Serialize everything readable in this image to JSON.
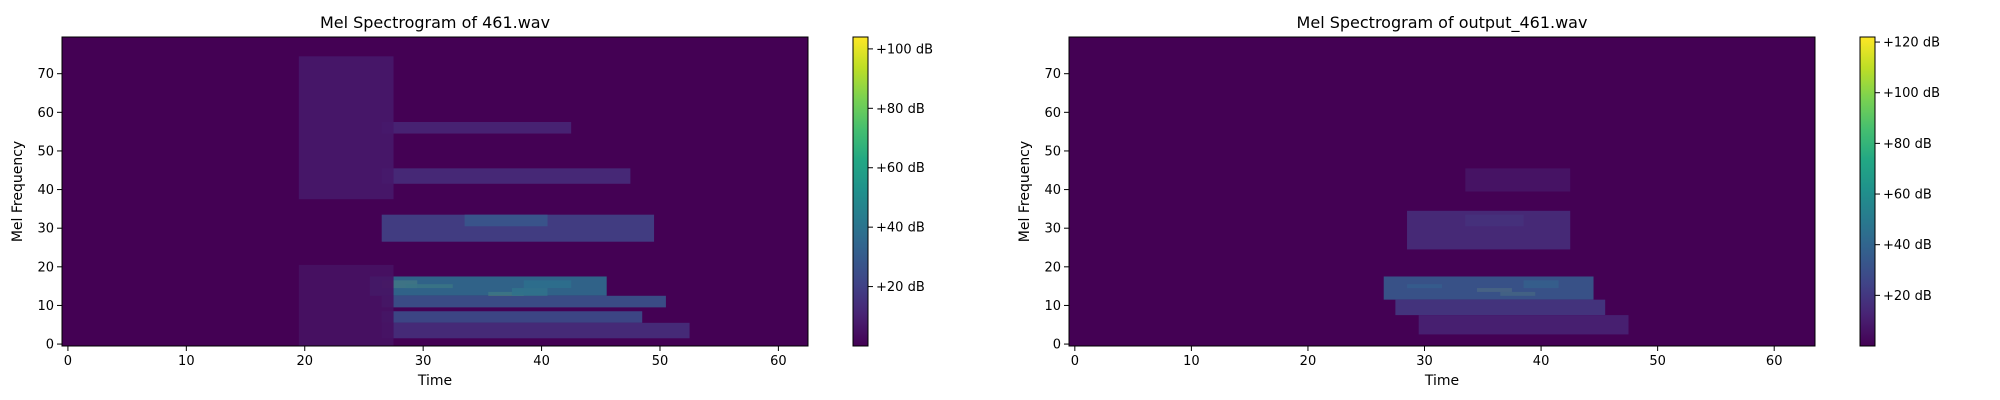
{
  "figure": {
    "background": "#ffffff"
  },
  "chart_data": [
    {
      "type": "heatmap",
      "title": "Mel Spectrogram of 461.wav",
      "xlabel": "Time",
      "ylabel": "Mel Frequency",
      "xlim": [
        -0.5,
        62.5
      ],
      "ylim": [
        -0.5,
        79.5
      ],
      "xticks": [
        0,
        10,
        20,
        30,
        40,
        50,
        60
      ],
      "yticks": [
        0,
        10,
        20,
        30,
        40,
        50,
        60,
        70
      ],
      "colormap": "viridis",
      "background_color": "#440154",
      "colorbar": {
        "vmin": 0,
        "vmax": 104,
        "ticks": [
          20,
          40,
          60,
          80,
          100
        ],
        "tick_labels": [
          "+20 dB",
          "+40 dB",
          "+60 dB",
          "+80 dB",
          "+100 dB"
        ]
      },
      "energy_regions": [
        {
          "t": [
            27,
            29
          ],
          "mel": [
            15,
            16
          ],
          "db": 104
        },
        {
          "t": [
            29,
            32
          ],
          "mel": [
            15,
            15
          ],
          "db": 92
        },
        {
          "t": [
            36,
            38
          ],
          "mel": [
            13,
            13
          ],
          "db": 98
        },
        {
          "t": [
            38,
            40
          ],
          "mel": [
            13,
            14
          ],
          "db": 72
        },
        {
          "t": [
            39,
            42
          ],
          "mel": [
            15,
            16
          ],
          "db": 58
        },
        {
          "t": [
            26,
            45
          ],
          "mel": [
            13,
            17
          ],
          "db": 36
        },
        {
          "t": [
            27,
            50
          ],
          "mel": [
            10,
            12
          ],
          "db": 26
        },
        {
          "t": [
            27,
            48
          ],
          "mel": [
            6,
            8
          ],
          "db": 24
        },
        {
          "t": [
            27,
            52
          ],
          "mel": [
            2,
            5
          ],
          "db": 14
        },
        {
          "t": [
            27,
            49
          ],
          "mel": [
            27,
            33
          ],
          "db": 20
        },
        {
          "t": [
            34,
            40
          ],
          "mel": [
            31,
            33
          ],
          "db": 28
        },
        {
          "t": [
            27,
            47
          ],
          "mel": [
            42,
            45
          ],
          "db": 13
        },
        {
          "t": [
            27,
            42
          ],
          "mel": [
            55,
            57
          ],
          "db": 11
        },
        {
          "t": [
            20,
            27
          ],
          "mel": [
            38,
            74
          ],
          "db": 7
        },
        {
          "t": [
            20,
            27
          ],
          "mel": [
            0,
            20
          ],
          "db": 5
        }
      ]
    },
    {
      "type": "heatmap",
      "title": "Mel Spectrogram of output_461.wav",
      "xlabel": "Time",
      "ylabel": "Mel Frequency",
      "xlim": [
        -0.5,
        63.5
      ],
      "ylim": [
        -0.5,
        79.5
      ],
      "xticks": [
        0,
        10,
        20,
        30,
        40,
        50,
        60
      ],
      "yticks": [
        0,
        10,
        20,
        30,
        40,
        50,
        60,
        70
      ],
      "colormap": "viridis",
      "background_color": "#440154",
      "colorbar": {
        "vmin": 0,
        "vmax": 122,
        "ticks": [
          20,
          40,
          60,
          80,
          100,
          120
        ],
        "tick_labels": [
          "+20 dB",
          "+40 dB",
          "+60 dB",
          "+80 dB",
          "+100 dB",
          "+120 dB"
        ]
      },
      "energy_regions": [
        {
          "t": [
            35,
            37
          ],
          "mel": [
            14,
            14
          ],
          "db": 122
        },
        {
          "t": [
            37,
            39
          ],
          "mel": [
            13,
            13
          ],
          "db": 112
        },
        {
          "t": [
            39,
            41
          ],
          "mel": [
            15,
            16
          ],
          "db": 72
        },
        {
          "t": [
            29,
            31
          ],
          "mel": [
            15,
            15
          ],
          "db": 58
        },
        {
          "t": [
            27,
            44
          ],
          "mel": [
            12,
            17
          ],
          "db": 34
        },
        {
          "t": [
            28,
            45
          ],
          "mel": [
            8,
            11
          ],
          "db": 20
        },
        {
          "t": [
            30,
            47
          ],
          "mel": [
            3,
            7
          ],
          "db": 12
        },
        {
          "t": [
            34,
            38
          ],
          "mel": [
            31,
            33
          ],
          "db": 38
        },
        {
          "t": [
            29,
            42
          ],
          "mel": [
            25,
            34
          ],
          "db": 16
        },
        {
          "t": [
            34,
            42
          ],
          "mel": [
            40,
            45
          ],
          "db": 7
        }
      ]
    }
  ]
}
